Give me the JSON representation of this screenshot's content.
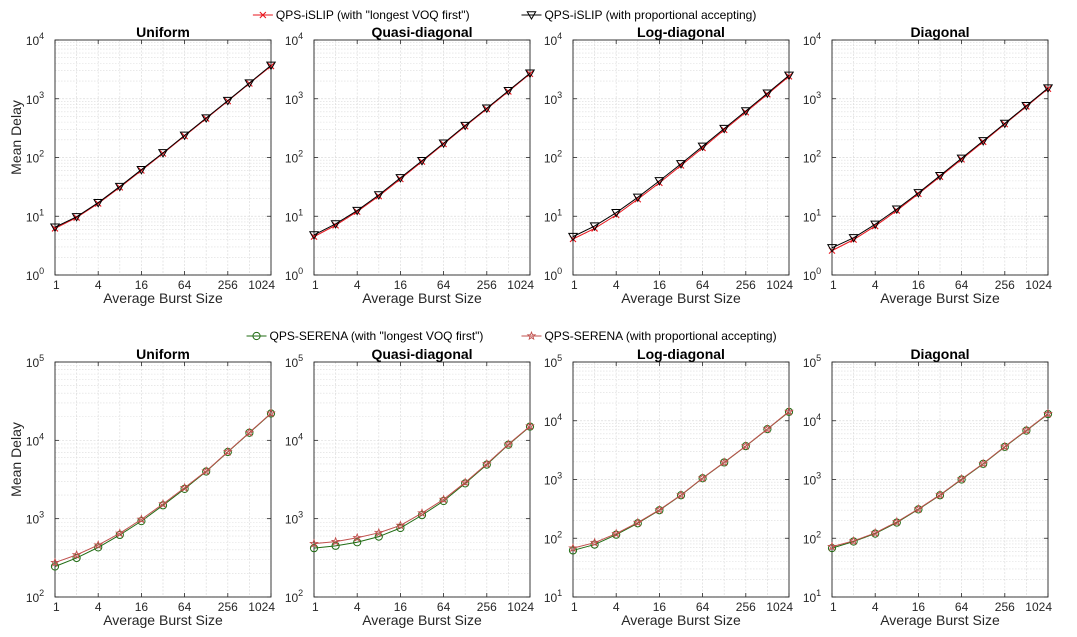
{
  "colors": {
    "islip_longest": "#e8161e",
    "islip_proportional": "#000000",
    "serena_longest": "#1f6b12",
    "serena_proportional": "#c0504d",
    "grid": "#dcdcdc",
    "axis": "#262626"
  },
  "legends": {
    "top": [
      {
        "label": "QPS-iSLIP (with \"longest VOQ first\")",
        "marker": "x",
        "color": "#e8161e"
      },
      {
        "label": "QPS-iSLIP (with proportional accepting)",
        "marker": "triangle-down",
        "color": "#000000"
      }
    ],
    "bottom": [
      {
        "label": "QPS-SERENA (with \"longest VOQ first\")",
        "marker": "circle",
        "color": "#1f6b12"
      },
      {
        "label": "QPS-SERENA (with proportional accepting)",
        "marker": "star",
        "color": "#c0504d"
      }
    ]
  },
  "chart_data": [
    {
      "type": "line",
      "row": 1,
      "title": "Uniform",
      "xlabel": "Average Burst Size",
      "ylabel": "Mean Delay",
      "xscale": "log2",
      "yscale": "log10",
      "xlim": [
        1,
        1024
      ],
      "ylim": [
        1,
        10000
      ],
      "xticks": [
        "1",
        "4",
        "16",
        "64",
        "256",
        "1024"
      ],
      "yticks": [
        "10^0",
        "10^1",
        "10^2",
        "10^3",
        "10^4"
      ],
      "grid": true,
      "x": [
        1,
        2,
        4,
        8,
        16,
        32,
        64,
        128,
        256,
        512,
        1024
      ],
      "series": [
        {
          "name": "QPS-iSLIP (with \"longest VOQ first\")",
          "values": [
            6.2,
            9.5,
            16.5,
            31,
            60,
            117,
            232,
            460,
            910,
            1820,
            3600
          ]
        },
        {
          "name": "QPS-iSLIP (with proportional accepting)",
          "values": [
            6.5,
            9.8,
            17,
            32,
            62,
            120,
            238,
            470,
            930,
            1850,
            3700
          ]
        }
      ]
    },
    {
      "type": "line",
      "row": 1,
      "title": "Quasi-diagonal",
      "xlabel": "Average Burst Size",
      "ylabel": "",
      "xscale": "log2",
      "yscale": "log10",
      "xlim": [
        1,
        1024
      ],
      "ylim": [
        1,
        10000
      ],
      "xticks": [
        "1",
        "4",
        "16",
        "64",
        "256",
        "1024"
      ],
      "yticks": [
        "10^0",
        "10^1",
        "10^2",
        "10^3",
        "10^4"
      ],
      "grid": true,
      "x": [
        1,
        2,
        4,
        8,
        16,
        32,
        64,
        128,
        256,
        512,
        1024
      ],
      "series": [
        {
          "name": "QPS-iSLIP (with \"longest VOQ first\")",
          "values": [
            4.5,
            7,
            12,
            22,
            43,
            85,
            170,
            340,
            670,
            1330,
            2650
          ]
        },
        {
          "name": "QPS-iSLIP (with proportional accepting)",
          "values": [
            4.8,
            7.4,
            12.5,
            23,
            45,
            88,
            175,
            350,
            690,
            1370,
            2720
          ]
        }
      ]
    },
    {
      "type": "line",
      "row": 1,
      "title": "Log-diagonal",
      "xlabel": "Average Burst Size",
      "ylabel": "",
      "xscale": "log2",
      "yscale": "log10",
      "xlim": [
        1,
        1024
      ],
      "ylim": [
        1,
        10000
      ],
      "xticks": [
        "1",
        "4",
        "16",
        "64",
        "256",
        "1024"
      ],
      "yticks": [
        "10^0",
        "10^1",
        "10^2",
        "10^3",
        "10^4"
      ],
      "grid": true,
      "x": [
        1,
        2,
        4,
        8,
        16,
        32,
        64,
        128,
        256,
        512,
        1024
      ],
      "series": [
        {
          "name": "QPS-iSLIP (with \"longest VOQ first\")",
          "values": [
            4.1,
            6.2,
            10.5,
            19.5,
            37,
            73,
            145,
            295,
            590,
            1190,
            2400
          ]
        },
        {
          "name": "QPS-iSLIP (with proportional accepting)",
          "values": [
            4.5,
            6.8,
            11.5,
            21,
            40,
            78,
            155,
            310,
            620,
            1240,
            2500
          ]
        }
      ]
    },
    {
      "type": "line",
      "row": 1,
      "title": "Diagonal",
      "xlabel": "Average Burst Size",
      "ylabel": "",
      "xscale": "log2",
      "yscale": "log10",
      "xlim": [
        1,
        1024
      ],
      "ylim": [
        1,
        10000
      ],
      "xticks": [
        "1",
        "4",
        "16",
        "64",
        "256",
        "1024"
      ],
      "yticks": [
        "10^0",
        "10^1",
        "10^2",
        "10^3",
        "10^4"
      ],
      "grid": true,
      "x": [
        1,
        2,
        4,
        8,
        16,
        32,
        64,
        128,
        256,
        512,
        1024
      ],
      "series": [
        {
          "name": "QPS-iSLIP (with \"longest VOQ first\")",
          "values": [
            2.6,
            4.0,
            6.8,
            12.5,
            24,
            47,
            93,
            185,
            370,
            740,
            1480
          ]
        },
        {
          "name": "QPS-iSLIP (with proportional accepting)",
          "values": [
            2.9,
            4.3,
            7.3,
            13.2,
            25,
            49,
            97,
            192,
            380,
            760,
            1520
          ]
        }
      ]
    },
    {
      "type": "line",
      "row": 2,
      "title": "Uniform",
      "xlabel": "Average Burst Size",
      "ylabel": "Mean Delay",
      "xscale": "log2",
      "yscale": "log10",
      "xlim": [
        1,
        1024
      ],
      "ylim": [
        100,
        100000
      ],
      "xticks": [
        "1",
        "4",
        "16",
        "64",
        "256",
        "1024"
      ],
      "yticks": [
        "10^2",
        "10^3",
        "10^4",
        "10^5"
      ],
      "grid": true,
      "x": [
        1,
        2,
        4,
        8,
        16,
        32,
        64,
        128,
        256,
        512,
        1024
      ],
      "series": [
        {
          "name": "QPS-SERENA (with \"longest VOQ first\")",
          "values": [
            245,
            315,
            430,
            620,
            930,
            1480,
            2400,
            4000,
            7100,
            12500,
            22000
          ]
        },
        {
          "name": "QPS-SERENA (with proportional accepting)",
          "values": [
            275,
            345,
            460,
            650,
            980,
            1540,
            2480,
            4050,
            7150,
            12600,
            22200
          ]
        }
      ]
    },
    {
      "type": "line",
      "row": 2,
      "title": "Quasi-diagonal",
      "xlabel": "Average Burst Size",
      "ylabel": "",
      "xscale": "log2",
      "yscale": "log10",
      "xlim": [
        1,
        1024
      ],
      "ylim": [
        100,
        100000
      ],
      "xticks": [
        "1",
        "4",
        "16",
        "64",
        "256",
        "1024"
      ],
      "yticks": [
        "10^2",
        "10^3",
        "10^4",
        "10^5"
      ],
      "grid": true,
      "x": [
        1,
        2,
        4,
        8,
        16,
        32,
        64,
        128,
        256,
        512,
        1024
      ],
      "series": [
        {
          "name": "QPS-SERENA (with \"longest VOQ first\")",
          "values": [
            420,
            450,
            500,
            590,
            760,
            1110,
            1680,
            2820,
            4900,
            8800,
            15000
          ]
        },
        {
          "name": "QPS-SERENA (with proportional accepting)",
          "values": [
            480,
            510,
            570,
            660,
            820,
            1180,
            1760,
            2900,
            5000,
            8900,
            15200
          ]
        }
      ]
    },
    {
      "type": "line",
      "row": 2,
      "title": "Log-diagonal",
      "xlabel": "Average Burst Size",
      "ylabel": "",
      "xscale": "log2",
      "yscale": "log10",
      "xlim": [
        1,
        1024
      ],
      "ylim": [
        10,
        100000
      ],
      "xticks": [
        "1",
        "4",
        "16",
        "64",
        "256",
        "1024"
      ],
      "yticks": [
        "10^1",
        "10^2",
        "10^3",
        "10^4",
        "10^5"
      ],
      "grid": true,
      "x": [
        1,
        2,
        4,
        8,
        16,
        32,
        64,
        128,
        256,
        512,
        1024
      ],
      "series": [
        {
          "name": "QPS-SERENA (with \"longest VOQ first\")",
          "values": [
            62,
            78,
            115,
            180,
            300,
            540,
            1050,
            1950,
            3700,
            7200,
            14200
          ]
        },
        {
          "name": "QPS-SERENA (with proportional accepting)",
          "values": [
            68,
            84,
            120,
            185,
            305,
            545,
            1060,
            1960,
            3720,
            7250,
            14400
          ]
        }
      ]
    },
    {
      "type": "line",
      "row": 2,
      "title": "Diagonal",
      "xlabel": "Average Burst Size",
      "ylabel": "",
      "xscale": "log2",
      "yscale": "log10",
      "xlim": [
        1,
        1024
      ],
      "ylim": [
        10,
        100000
      ],
      "xticks": [
        "1",
        "4",
        "16",
        "64",
        "256",
        "1024"
      ],
      "yticks": [
        "10^1",
        "10^2",
        "10^3",
        "10^4",
        "10^5"
      ],
      "grid": true,
      "x": [
        1,
        2,
        4,
        8,
        16,
        32,
        64,
        128,
        256,
        512,
        1024
      ],
      "series": [
        {
          "name": "QPS-SERENA (with \"longest VOQ first\")",
          "values": [
            68,
            88,
            120,
            185,
            310,
            540,
            1000,
            1850,
            3600,
            6800,
            13000
          ]
        },
        {
          "name": "QPS-SERENA (with proportional accepting)",
          "values": [
            72,
            90,
            123,
            190,
            315,
            548,
            1020,
            1870,
            3650,
            6900,
            13200
          ]
        }
      ]
    }
  ]
}
